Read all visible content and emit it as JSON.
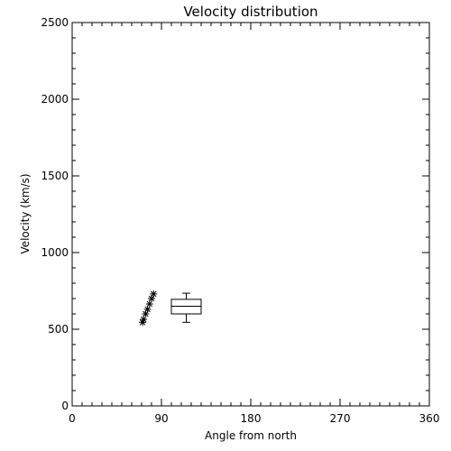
{
  "chart_data": {
    "type": "scatter",
    "title": "Velocity distribution",
    "xlabel": "Angle from north",
    "ylabel": "Velocity (km/s)",
    "xlim": [
      0,
      360
    ],
    "ylim": [
      0,
      2500
    ],
    "x_ticks": [
      0,
      90,
      180,
      270,
      360
    ],
    "y_ticks": [
      0,
      500,
      1000,
      1500,
      2000,
      2500
    ],
    "x_minor_step": 10,
    "y_minor_step": 100,
    "grid": false,
    "legend": "none",
    "points": {
      "marker": "asterisk",
      "x": [
        71,
        72,
        74,
        76,
        78,
        80,
        82
      ],
      "y": [
        545,
        565,
        600,
        630,
        665,
        700,
        730
      ]
    },
    "boxplot": {
      "x": 115,
      "half_width": 15,
      "whisker_low": 545,
      "q1": 600,
      "median": 650,
      "q3": 695,
      "whisker_high": 735,
      "whisker_cap_half_width": 4
    }
  }
}
